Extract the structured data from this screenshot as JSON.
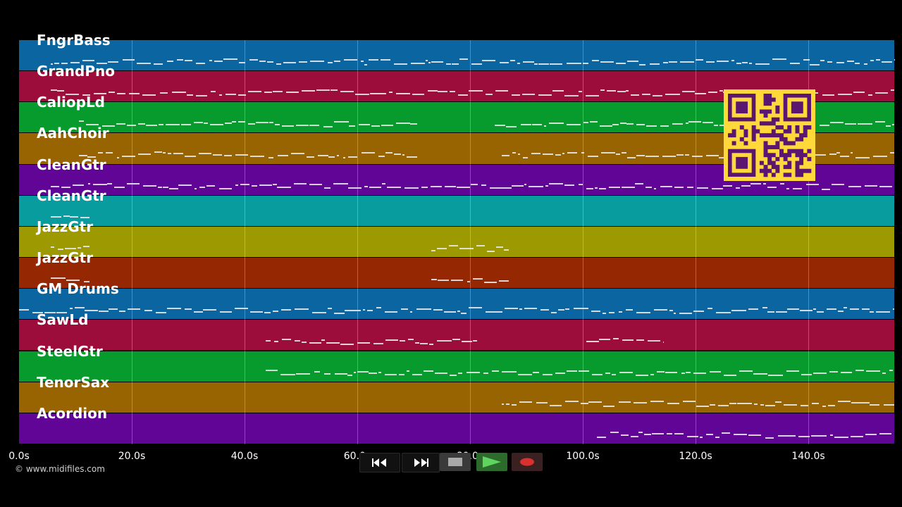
{
  "tracks": [
    {
      "name": "FngrBass",
      "color": "#0a65a0"
    },
    {
      "name": "GrandPno",
      "color": "#9c0d3b"
    },
    {
      "name": "CaliopLd",
      "color": "#079a2c"
    },
    {
      "name": "AahChoir",
      "color": "#986301"
    },
    {
      "name": "CleanGtr",
      "color": "#600595"
    },
    {
      "name": "CleanGtr",
      "color": "#089c9e"
    },
    {
      "name": "JazzGtr",
      "color": "#9c9a00"
    },
    {
      "name": "JazzGtr",
      "color": "#962703"
    },
    {
      "name": "GM Drums",
      "color": "#0a65a0"
    },
    {
      "name": "SawLd",
      "color": "#9c0d3b"
    },
    {
      "name": "SteelGtr",
      "color": "#079a2c"
    },
    {
      "name": "TenorSax",
      "color": "#986301"
    },
    {
      "name": "Acordion",
      "color": "#600595"
    }
  ],
  "timeline": {
    "ticks": [
      "0.0s",
      "20.0s",
      "40.0s",
      "60.0s",
      "80.0s",
      "100.0s",
      "120.0s",
      "140.0s"
    ]
  },
  "copyright": "© www.midifiles.com",
  "transport": {
    "buttons": [
      {
        "name": "rewind-button",
        "icon": "rewind-icon"
      },
      {
        "name": "fast-forward-button",
        "icon": "fast-forward-icon"
      },
      {
        "name": "stop-button",
        "icon": "stop-icon"
      },
      {
        "name": "play-button",
        "icon": "play-icon"
      },
      {
        "name": "record-button",
        "icon": "record-icon"
      }
    ]
  },
  "colors": {
    "background": "#000000",
    "qr_fill": "#ffd83a",
    "qr_ink": "#5a1670",
    "play_green": "#3aa83a",
    "record_red": "#d8312f"
  }
}
